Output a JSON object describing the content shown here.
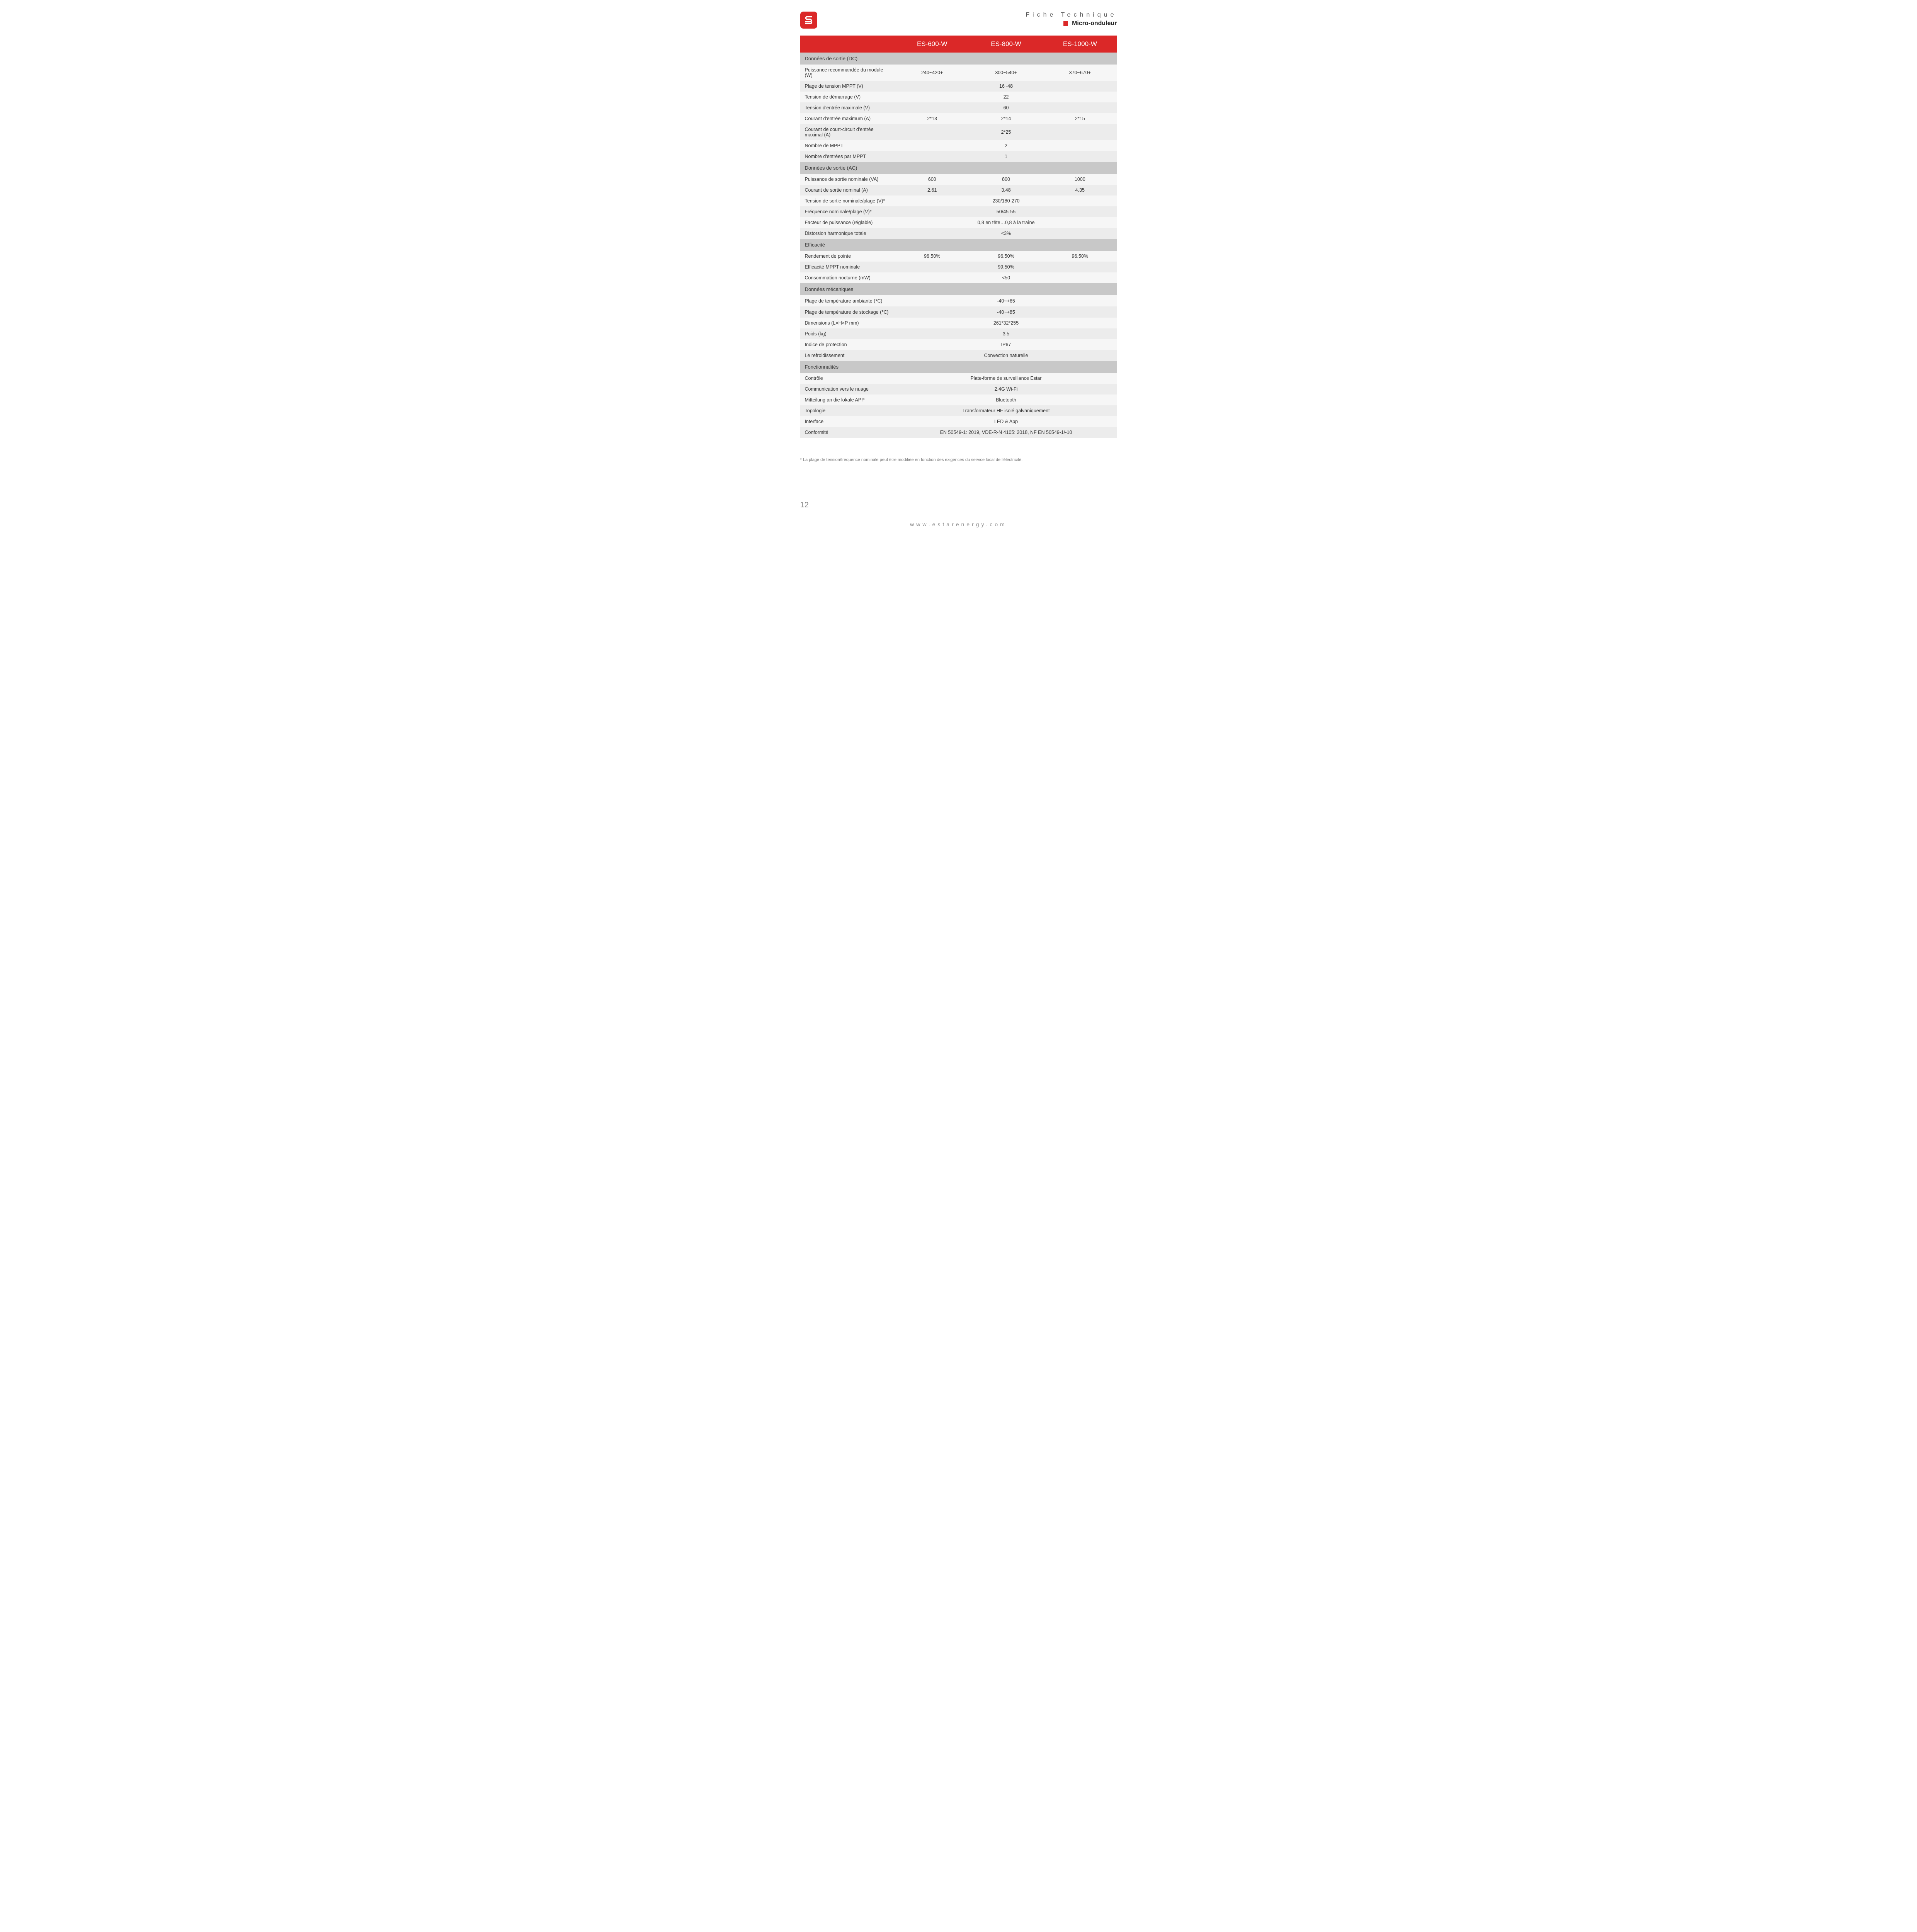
{
  "header": {
    "fiche": "Fiche Technique",
    "subtitle": "Micro-onduleur"
  },
  "columns": [
    "",
    "ES-600-W",
    "ES-800-W",
    "ES-1000-W"
  ],
  "sections": [
    {
      "title": "Données de sortie (DC)",
      "rows": [
        {
          "label": "Puissance recommandée du module (W)",
          "vals": [
            "240~420+",
            "300~540+",
            "370~670+"
          ]
        },
        {
          "label": "Plage de tension MPPT (V)",
          "vals": [
            "16~48"
          ],
          "span": true
        },
        {
          "label": "Tension de démarrage (V)",
          "vals": [
            "22"
          ],
          "span": true
        },
        {
          "label": "Tension d'entrée maximale (V)",
          "vals": [
            "60"
          ],
          "span": true
        },
        {
          "label": "Courant d'entrée maximum (A)",
          "vals": [
            "2*13",
            "2*14",
            "2*15"
          ]
        },
        {
          "label": "Courant de court-circuit d'entrée maximal (A)",
          "vals": [
            "2*25"
          ],
          "span": true
        },
        {
          "label": "Nombre de MPPT",
          "vals": [
            "2"
          ],
          "span": true
        },
        {
          "label": "Nombre d'entrées par MPPT",
          "vals": [
            "1"
          ],
          "span": true
        }
      ]
    },
    {
      "title": "Données de sortie (AC)",
      "rows": [
        {
          "label": "Puissance de sortie nominale (VA)",
          "vals": [
            "600",
            "800",
            "1000"
          ]
        },
        {
          "label": "Courant de sortie nominal (A)",
          "vals": [
            "2.61",
            "3.48",
            "4.35"
          ]
        },
        {
          "label": "Tension de sortie nominale/plage (V)*",
          "vals": [
            "230/180-270"
          ],
          "span": true
        },
        {
          "label": "Fréquence nominale/plage (V)*",
          "vals": [
            "50/45-55"
          ],
          "span": true
        },
        {
          "label": "Facteur de puissance (réglable)",
          "vals": [
            "0,8 en tête…0,8 à la traîne"
          ],
          "span": true
        },
        {
          "label": "Distorsion harmonique totale",
          "vals": [
            "<3%"
          ],
          "span": true
        }
      ]
    },
    {
      "title": "Efficacité",
      "rows": [
        {
          "label": "Rendement de pointe",
          "vals": [
            "96.50%",
            "96.50%",
            "96.50%"
          ]
        },
        {
          "label": "Efficacité MPPT nominale",
          "vals": [
            "99.50%"
          ],
          "span": true
        },
        {
          "label": "Consommation nocturne (mW)",
          "vals": [
            "<50"
          ],
          "span": true
        }
      ]
    },
    {
      "title": "Données mécaniques",
      "rows": [
        {
          "label": "Plage de température ambiante (℃)",
          "vals": [
            "-40~+65"
          ],
          "span": true
        },
        {
          "label": "Plage de température de stockage (℃)",
          "vals": [
            "-40~+85"
          ],
          "span": true
        },
        {
          "label": "Dimensions (L×H×P mm)",
          "vals": [
            "261*32*255"
          ],
          "span": true
        },
        {
          "label": "Poids (kg)",
          "vals": [
            "3.5"
          ],
          "span": true
        },
        {
          "label": "Indice de protection",
          "vals": [
            "IP67"
          ],
          "span": true
        },
        {
          "label": "Le refroidissement",
          "vals": [
            "Convection naturelle"
          ],
          "span": true
        }
      ]
    },
    {
      "title": "Fonctionnalités",
      "rows": [
        {
          "label": "Contrôle",
          "vals": [
            "Plate-forme de surveillance Estar"
          ],
          "span": true
        },
        {
          "label": "Communication vers le nuage",
          "vals": [
            "2.4G Wi-Fi"
          ],
          "span": true
        },
        {
          "label": "Mitteilung an die lokale APP",
          "vals": [
            "Bluetooth"
          ],
          "span": true
        },
        {
          "label": "Topologie",
          "vals": [
            "Transformateur HF isolé galvaniquement"
          ],
          "span": true
        },
        {
          "label": "Interface",
          "vals": [
            "LED & App"
          ],
          "span": true
        },
        {
          "label": "Conformité",
          "vals": [
            "EN 50549-1: 2019, VDE-R-N 4105: 2018, NF EN 50549-1/-10"
          ],
          "span": true
        }
      ]
    }
  ],
  "footnote": "* La plage de tension/fréquence nominale peut être modifiée en fonction des exigences du service local de l'électricité.",
  "pagenum": "12",
  "footer_url": "www.estarenergy.com",
  "colors": {
    "brand_red": "#db2828",
    "section_gray": "#c8c8c8",
    "row_light": "#f6f6f6",
    "row_dark": "#ececec"
  }
}
